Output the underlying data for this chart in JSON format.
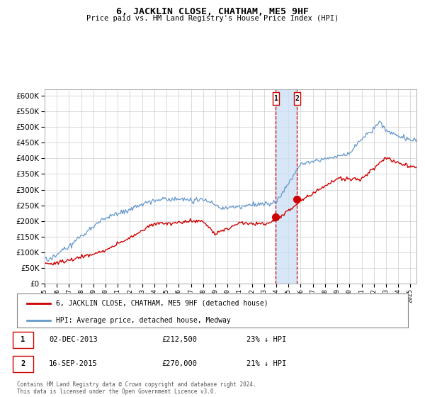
{
  "title": "6, JACKLIN CLOSE, CHATHAM, ME5 9HF",
  "subtitle": "Price paid vs. HM Land Registry's House Price Index (HPI)",
  "legend_line1": "6, JACKLIN CLOSE, CHATHAM, ME5 9HF (detached house)",
  "legend_line2": "HPI: Average price, detached house, Medway",
  "sale1_date": "02-DEC-2013",
  "sale1_price": 212500,
  "sale1_label": "1",
  "sale1_note": "23% ↓ HPI",
  "sale2_date": "16-SEP-2015",
  "sale2_price": 270000,
  "sale2_label": "2",
  "sale2_note": "21% ↓ HPI",
  "footer": "Contains HM Land Registry data © Crown copyright and database right 2024.\nThis data is licensed under the Open Government Licence v3.0.",
  "hpi_color": "#6699cc",
  "price_color": "#cc0000",
  "marker_color": "#cc0000",
  "vline_color": "#cc0000",
  "vspan_color": "#cce0f5",
  "ylim": [
    0,
    620000
  ],
  "ytick_step": 50000
}
